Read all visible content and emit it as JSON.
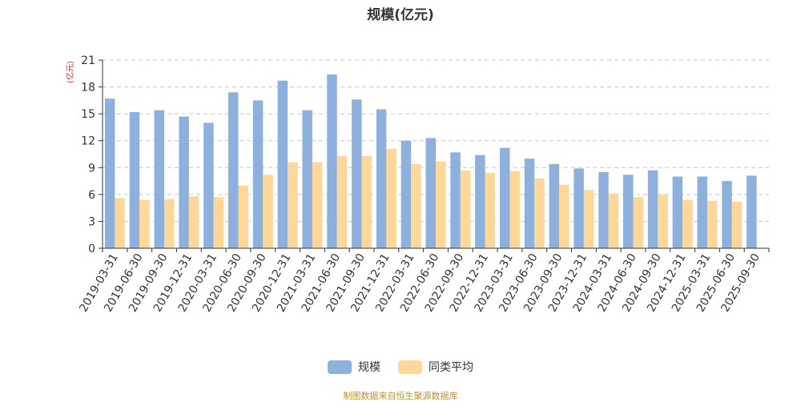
{
  "chart_data": {
    "type": "bar",
    "title": "规模(亿元)",
    "ylabel": "(亿元)",
    "xlabel": "",
    "ylim": [
      0,
      21
    ],
    "yticks": [
      "0",
      "3",
      "6",
      "9",
      "12",
      "15",
      "18",
      "21"
    ],
    "grid": true,
    "legend_position": "bottom",
    "categories": [
      "2019-03-31",
      "2019-06-30",
      "2019-09-30",
      "2019-12-31",
      "2020-03-31",
      "2020-06-30",
      "2020-09-30",
      "2020-12-31",
      "2021-03-31",
      "2021-06-30",
      "2021-09-30",
      "2021-12-31",
      "2022-03-31",
      "2022-06-30",
      "2022-09-30",
      "2022-12-31",
      "2023-03-31",
      "2023-06-30",
      "2023-09-30",
      "2023-12-31",
      "2024-03-31",
      "2024-06-30",
      "2024-09-30",
      "2024-12-31",
      "2025-03-31",
      "2025-06-30",
      "2025-09-30"
    ],
    "series": [
      {
        "name": "规模",
        "color": "#8eb0dc",
        "values": [
          16.7,
          15.2,
          15.4,
          14.7,
          14.0,
          17.4,
          16.5,
          18.7,
          15.4,
          19.4,
          16.6,
          15.5,
          12.0,
          12.3,
          10.7,
          10.4,
          11.2,
          10.0,
          9.4,
          8.9,
          8.5,
          8.2,
          8.7,
          8.0,
          8.0,
          7.5,
          8.1
        ]
      },
      {
        "name": "同类平均",
        "color": "#fdd89a",
        "values": [
          5.6,
          5.4,
          5.5,
          5.8,
          5.7,
          7.0,
          8.2,
          9.6,
          9.6,
          10.3,
          10.3,
          11.1,
          9.4,
          9.7,
          8.7,
          8.4,
          8.6,
          7.8,
          7.1,
          6.5,
          6.1,
          5.7,
          6.0,
          5.4,
          5.3,
          5.2,
          null
        ]
      }
    ]
  },
  "legend": {
    "items": [
      "规模",
      "同类平均"
    ]
  },
  "source": "制图数据来自恒生聚源数据库"
}
